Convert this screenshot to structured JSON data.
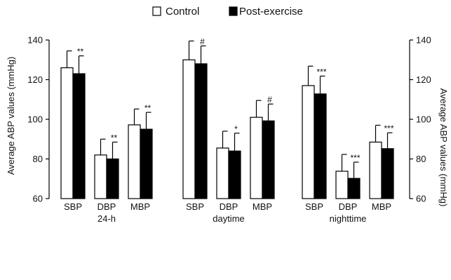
{
  "chart_data": {
    "type": "bar",
    "y_axis_label_left": "Average ABP values (mmHg)",
    "y_axis_label_right": "Average ABP values (mmHg)",
    "ylim": [
      60,
      140
    ],
    "yticks": [
      "60",
      "80",
      "100",
      "120",
      "140"
    ],
    "grid": false,
    "legend": {
      "placement": "top-center",
      "entries": [
        "Control",
        "Post-exercise"
      ]
    },
    "series": [
      {
        "name": "Control",
        "color": "#ffffff"
      },
      {
        "name": "Post-exercise",
        "color": "#000000"
      }
    ],
    "groups": [
      {
        "label": "24-h",
        "categories": [
          {
            "label": "SBP",
            "control": 126,
            "control_err": 8.5,
            "post": 123,
            "post_err": 9,
            "sig": "**"
          },
          {
            "label": "DBP",
            "control": 82,
            "control_err": 8,
            "post": 80,
            "post_err": 8.5,
            "sig": "**"
          },
          {
            "label": "MBP",
            "control": 97.2,
            "control_err": 8,
            "post": 95,
            "post_err": 8.5,
            "sig": "**"
          }
        ]
      },
      {
        "label": "daytime",
        "categories": [
          {
            "label": "SBP",
            "control": 130,
            "control_err": 9.5,
            "post": 128,
            "post_err": 9,
            "sig": "#"
          },
          {
            "label": "DBP",
            "control": 85.5,
            "control_err": 8.5,
            "post": 84,
            "post_err": 9,
            "sig": "*"
          },
          {
            "label": "MBP",
            "control": 101,
            "control_err": 8.5,
            "post": 99.2,
            "post_err": 8.5,
            "sig": "#"
          }
        ]
      },
      {
        "label": "nighttime",
        "categories": [
          {
            "label": "SBP",
            "control": 117,
            "control_err": 9.8,
            "post": 112.8,
            "post_err": 9,
            "sig": "***"
          },
          {
            "label": "DBP",
            "control": 73.8,
            "control_err": 8.5,
            "post": 70.2,
            "post_err": 8.2,
            "sig": "***"
          },
          {
            "label": "MBP",
            "control": 88.5,
            "control_err": 8.5,
            "post": 85.2,
            "post_err": 8,
            "sig": "***"
          }
        ]
      }
    ]
  }
}
